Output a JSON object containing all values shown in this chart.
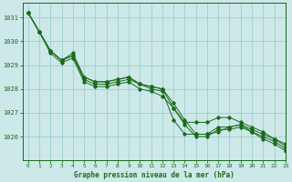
{
  "background_color": "#cce8e8",
  "grid_color": "#9ecece",
  "line_color": "#1a6b1a",
  "marker_color": "#1a6b1a",
  "title": "Graphe pression niveau de la mer (hPa)",
  "xlim": [
    -0.5,
    23
  ],
  "ylim": [
    1025.0,
    1031.6
  ],
  "yticks": [
    1026,
    1027,
    1028,
    1029,
    1030,
    1031
  ],
  "xticks": [
    0,
    1,
    2,
    3,
    4,
    5,
    6,
    7,
    8,
    9,
    10,
    11,
    12,
    13,
    14,
    15,
    16,
    17,
    18,
    19,
    20,
    21,
    22,
    23
  ],
  "series": [
    [
      1031.2,
      1030.4,
      1029.6,
      1029.2,
      1029.4,
      1028.4,
      1028.2,
      1028.2,
      1028.3,
      1028.4,
      1028.2,
      1028.0,
      1027.9,
      1026.7,
      1026.1,
      1026.1,
      1026.1,
      1026.2,
      1026.4,
      1026.5,
      1026.2,
      1026.0,
      1025.8,
      1025.5
    ],
    [
      1031.2,
      1030.4,
      1029.6,
      1029.2,
      1029.4,
      1028.5,
      1028.3,
      1028.3,
      1028.4,
      1028.5,
      1028.2,
      1028.1,
      1028.0,
      1027.2,
      1026.6,
      1026.6,
      1026.6,
      1026.8,
      1026.8,
      1026.6,
      1026.4,
      1026.2,
      1025.9,
      1025.7
    ],
    [
      1031.2,
      1030.4,
      1029.6,
      1029.2,
      1029.5,
      1028.5,
      1028.3,
      1028.3,
      1028.4,
      1028.5,
      1028.2,
      1028.1,
      1028.0,
      1027.4,
      1026.7,
      1026.1,
      1026.1,
      1026.4,
      1026.4,
      1026.5,
      1026.3,
      1026.1,
      1025.9,
      1025.6
    ],
    [
      1031.2,
      1030.4,
      1029.5,
      1029.1,
      1029.3,
      1028.3,
      1028.1,
      1028.1,
      1028.2,
      1028.3,
      1028.0,
      1027.9,
      1027.7,
      1027.2,
      1026.5,
      1026.0,
      1026.0,
      1026.3,
      1026.3,
      1026.4,
      1026.2,
      1025.9,
      1025.7,
      1025.4
    ]
  ]
}
